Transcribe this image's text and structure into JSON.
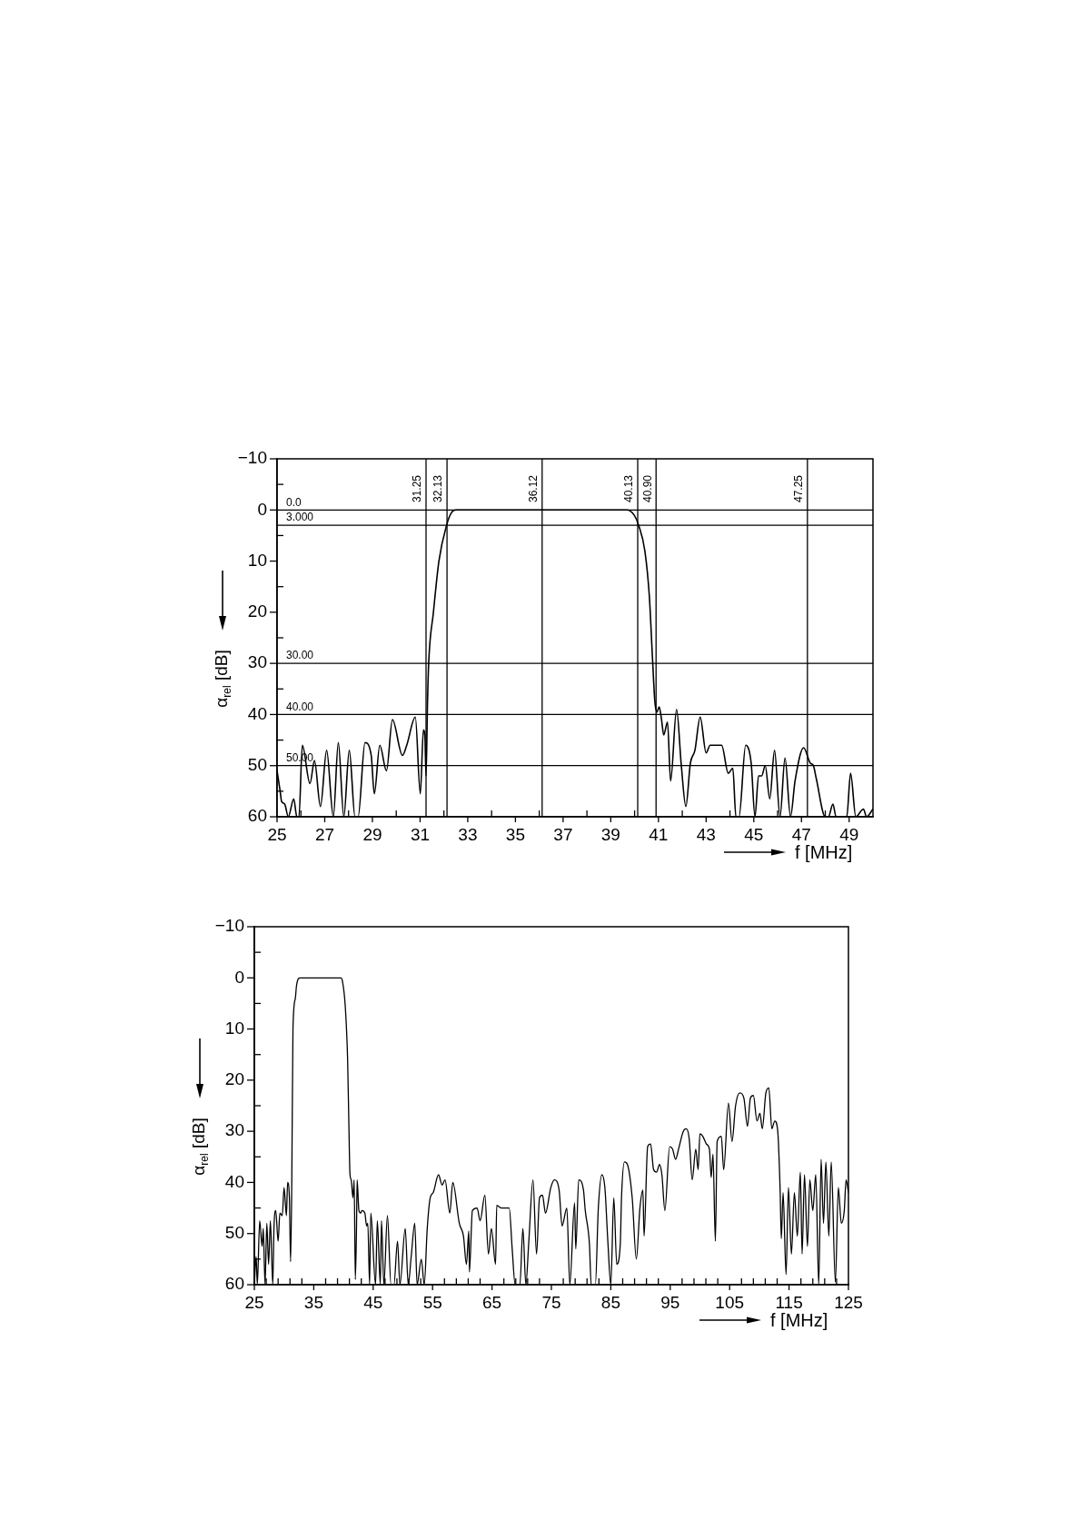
{
  "chart_data": [
    {
      "type": "line",
      "xlabel": "f [MHz]",
      "ylabel": "α$_{rel}$ [dB]",
      "color": "#000000",
      "xlim": [
        25,
        50
      ],
      "ylim": [
        60,
        -10
      ],
      "xticks": [
        25,
        {
          "value": 26,
          "label": null
        },
        27,
        {
          "value": 28,
          "label": null
        },
        29,
        {
          "value": 30,
          "label": null
        },
        31,
        {
          "value": 32,
          "label": null
        },
        33,
        {
          "value": 34,
          "label": null
        },
        35,
        {
          "value": 36,
          "label": null
        },
        37,
        {
          "value": 38,
          "label": null
        },
        39,
        {
          "value": 40,
          "label": null
        },
        41,
        {
          "value": 42,
          "label": null
        },
        43,
        {
          "value": 44,
          "label": null
        },
        45,
        {
          "value": 46,
          "label": null
        },
        47,
        {
          "value": 48,
          "label": null
        },
        49
      ],
      "yticks": [
        {
          "value": -10,
          "label": "−10"
        },
        {
          "value": -5,
          "label": null
        },
        0,
        {
          "value": 5,
          "label": null
        },
        10,
        {
          "value": 15,
          "label": null
        },
        20,
        {
          "value": 25,
          "label": null
        },
        30,
        {
          "value": 35,
          "label": null
        },
        40,
        {
          "value": 45,
          "label": null
        },
        50,
        {
          "value": 55,
          "label": null
        },
        60
      ],
      "ref_lines": [
        {
          "axis": "x",
          "value": 31.25,
          "label": "31.25",
          "color": "#000000"
        },
        {
          "axis": "x",
          "value": 32.13,
          "label": "32.13",
          "color": "#000000"
        },
        {
          "axis": "x",
          "value": 36.12,
          "label": "36.12",
          "color": "#000000"
        },
        {
          "axis": "x",
          "value": 40.13,
          "label": "40.13",
          "color": "#000000"
        },
        {
          "axis": "x",
          "value": 40.9,
          "label": "40.90",
          "color": "#000000"
        },
        {
          "axis": "x",
          "value": 47.25,
          "label": "47.25",
          "color": "#000000"
        },
        {
          "axis": "y",
          "value": 0,
          "label": "0.0",
          "color": "#000000"
        },
        {
          "axis": "y",
          "value": 3,
          "label": "3.000",
          "color": "#000000"
        },
        {
          "axis": "y",
          "value": 30,
          "label": "30.00",
          "color": "#000000"
        },
        {
          "axis": "y",
          "value": 40,
          "label": "40.00",
          "color": "#000000"
        },
        {
          "axis": "y",
          "value": 50,
          "label": "50.00",
          "color": "#000000"
        }
      ],
      "x": [
        25,
        25.13,
        25.19,
        25.32,
        25.47,
        25.7,
        25.83,
        25.92,
        26.06,
        26.38,
        26.57,
        26.82,
        27.08,
        27.36,
        27.57,
        27.8,
        28.03,
        28.27,
        28.4,
        28.69,
        28.95,
        29.08,
        29.31,
        29.59,
        29.84,
        30.26,
        30.44,
        30.8,
        31.01,
        31.14,
        31.2,
        31.25,
        31.31,
        31.36,
        31.56,
        31.79,
        32.11,
        32.32,
        32.52,
        35,
        37,
        39.66,
        39.98,
        40.17,
        40.43,
        40.62,
        40.75,
        40.85,
        40.94,
        41.03,
        41.13,
        41.22,
        41.38,
        41.51,
        41.76,
        41.96,
        42.15,
        42.34,
        42.53,
        42.75,
        43,
        43.17,
        43.42,
        43.65,
        43.93,
        44.12,
        44.25,
        44.38,
        44.66,
        44.89,
        45.05,
        45.2,
        45.33,
        45.48,
        45.67,
        45.87,
        46.1,
        46.31,
        46.54,
        46.73,
        47.09,
        47.37,
        47.5,
        47.62,
        48,
        48.13,
        48.32,
        48.45,
        48.9,
        49.06,
        49.28,
        49.6,
        49.73,
        50
      ],
      "values": [
        51,
        55,
        57,
        57.5,
        60,
        56.5,
        60,
        60,
        46,
        53.5,
        49,
        58,
        47,
        60,
        45.5,
        60,
        47,
        60,
        60,
        45.5,
        48,
        55.5,
        46,
        51,
        41,
        48,
        46,
        40.5,
        55.5,
        43,
        44,
        52,
        38,
        30,
        20,
        10,
        3,
        0.5,
        0,
        0,
        0,
        0,
        1,
        3,
        8,
        17,
        29,
        37.5,
        39.5,
        38.5,
        41,
        44,
        41.5,
        53,
        39,
        50,
        58,
        49.5,
        47,
        40.5,
        47.5,
        46,
        46,
        46,
        51.5,
        50.5,
        60,
        60,
        46,
        49.5,
        60,
        52,
        52,
        50,
        56.5,
        47,
        60,
        48.5,
        60,
        53,
        46.5,
        49.5,
        50,
        52.5,
        60,
        60,
        57.5,
        60,
        60,
        51.5,
        60,
        58.5,
        60,
        58.5
      ]
    },
    {
      "type": "line",
      "xlabel": "f [MHz]",
      "ylabel": "α$_{rel}$ [dB]",
      "color": "#000000",
      "xlim": [
        25,
        125
      ],
      "ylim": [
        60,
        -10
      ],
      "xticks": [
        25,
        {
          "value": 27,
          "label": null
        },
        {
          "value": 29,
          "label": null
        },
        {
          "value": 31,
          "label": null
        },
        {
          "value": 33,
          "label": null
        },
        35,
        {
          "value": 37,
          "label": null
        },
        {
          "value": 39,
          "label": null
        },
        {
          "value": 41,
          "label": null
        },
        {
          "value": 43,
          "label": null
        },
        45,
        {
          "value": 47,
          "label": null
        },
        {
          "value": 49,
          "label": null
        },
        {
          "value": 51,
          "label": null
        },
        {
          "value": 53,
          "label": null
        },
        55,
        {
          "value": 57,
          "label": null
        },
        {
          "value": 59,
          "label": null
        },
        {
          "value": 61,
          "label": null
        },
        {
          "value": 63,
          "label": null
        },
        65,
        {
          "value": 67,
          "label": null
        },
        {
          "value": 69,
          "label": null
        },
        {
          "value": 71,
          "label": null
        },
        {
          "value": 73,
          "label": null
        },
        75,
        {
          "value": 77,
          "label": null
        },
        {
          "value": 79,
          "label": null
        },
        {
          "value": 81,
          "label": null
        },
        {
          "value": 83,
          "label": null
        },
        85,
        {
          "value": 87,
          "label": null
        },
        {
          "value": 89,
          "label": null
        },
        {
          "value": 91,
          "label": null
        },
        {
          "value": 93,
          "label": null
        },
        95,
        {
          "value": 97,
          "label": null
        },
        {
          "value": 99,
          "label": null
        },
        {
          "value": 101,
          "label": null
        },
        {
          "value": 103,
          "label": null
        },
        105,
        {
          "value": 107,
          "label": null
        },
        {
          "value": 109,
          "label": null
        },
        {
          "value": 111,
          "label": null
        },
        {
          "value": 113,
          "label": null
        },
        115,
        {
          "value": 117,
          "label": null
        },
        {
          "value": 119,
          "label": null
        },
        {
          "value": 121,
          "label": null
        },
        {
          "value": 123,
          "label": null
        },
        125
      ],
      "yticks": [
        {
          "value": -10,
          "label": "−10"
        },
        {
          "value": -5,
          "label": null
        },
        0,
        {
          "value": 5,
          "label": null
        },
        10,
        {
          "value": 15,
          "label": null
        },
        20,
        {
          "value": 25,
          "label": null
        },
        30,
        {
          "value": 35,
          "label": null
        },
        40,
        {
          "value": 45,
          "label": null
        },
        50,
        {
          "value": 55,
          "label": null
        },
        60
      ],
      "x": [
        25,
        25.3,
        25.5,
        25.9,
        26.3,
        26.5,
        26.8,
        27.1,
        27.4,
        27.7,
        28.1,
        28.3,
        28.6,
        29,
        29.3,
        29.7,
        30,
        30.4,
        30.6,
        30.9,
        31.1,
        31.3,
        31.5,
        31.9,
        32.1,
        32.7,
        36,
        39.6,
        39.8,
        40.3,
        40.7,
        40.9,
        41.1,
        41.3,
        41.6,
        41.8,
        42,
        42.2,
        42.3,
        42.6,
        42.9,
        43.1,
        43.6,
        43.9,
        44.1,
        44.4,
        44.6,
        45.4,
        45.7,
        46.2,
        46.4,
        46.8,
        47.4,
        48,
        48.5,
        49.1,
        49.5,
        50.4,
        50.9,
        51.4,
        52,
        52.4,
        53.1,
        53.6,
        54.1,
        54.6,
        55.1,
        56,
        56.6,
        57.1,
        57.9,
        58.4,
        59.5,
        60.2,
        60.7,
        61.1,
        61.2,
        61.7,
        62.5,
        63,
        63.8,
        64.4,
        64.9,
        65.6,
        65.8,
        66.6,
        67.9,
        68.4,
        68.9,
        69.7,
        70.2,
        70.7,
        71.2,
        71.9,
        72.5,
        73,
        73.5,
        74,
        74.9,
        75.5,
        76.3,
        76.8,
        77.6,
        78.1,
        78.9,
        79.1,
        79.6,
        80.4,
        80.7,
        81.4,
        81.7,
        82.4,
        82.9,
        83.5,
        84,
        84.5,
        85,
        85.5,
        86,
        86.6,
        86.8,
        87.3,
        87.8,
        88.6,
        89.3,
        89.9,
        90.4,
        90.6,
        91.2,
        91.7,
        92.2,
        92.7,
        93.2,
        93.6,
        94.1,
        94.9,
        95.4,
        95.9,
        96.4,
        97.2,
        97.7,
        98.2,
        98.7,
        99.3,
        99.7,
        100,
        100.5,
        101.1,
        101.6,
        101.9,
        102.2,
        102.6,
        102.9,
        103.6,
        104,
        104.8,
        105.4,
        106,
        106.7,
        107.4,
        108,
        108.5,
        109,
        109.6,
        110.1,
        110.5,
        111.1,
        111.6,
        112.1,
        112.6,
        113.1,
        113.5,
        113.7,
        114,
        114.5,
        114.9,
        115.4,
        115.9,
        116.4,
        116.9,
        117.2,
        117.6,
        118.1,
        118.5,
        119,
        119.5,
        120,
        120.4,
        120.8,
        121.2,
        121.7,
        122.1,
        122.8,
        123.3,
        123.8,
        124.3,
        124.6,
        125
      ],
      "values": [
        60,
        54.5,
        60,
        47.5,
        52.5,
        49,
        60,
        48,
        56,
        47.5,
        60,
        49,
        45.5,
        51.5,
        46,
        46.5,
        41,
        46.5,
        40,
        43,
        55.5,
        40,
        10,
        4,
        1.5,
        0,
        0,
        0,
        0.5,
        5.5,
        16,
        28,
        38.5,
        39.5,
        43,
        39.5,
        59,
        48.5,
        39.5,
        45.5,
        46,
        45.5,
        46,
        48.5,
        48,
        60,
        46,
        60,
        47.5,
        60,
        47.5,
        60,
        46.5,
        60,
        60,
        51.5,
        60,
        49,
        60,
        54.5,
        48,
        60,
        55,
        60,
        49,
        43,
        42,
        38.5,
        40.5,
        39.5,
        46,
        40,
        48,
        50.5,
        56,
        49.5,
        57.5,
        45.5,
        45,
        47.5,
        42.5,
        54,
        49,
        56,
        44.5,
        45,
        45,
        53,
        60,
        60,
        49,
        60,
        51.5,
        39.5,
        54,
        43,
        42.5,
        46,
        41,
        39.5,
        41.5,
        48.5,
        45,
        60,
        44,
        53,
        39.5,
        41.5,
        45.5,
        52,
        60,
        60,
        45,
        38.5,
        41,
        51.5,
        60,
        43,
        56,
        52,
        43,
        36,
        36.5,
        43,
        55,
        45,
        41.5,
        50.5,
        33,
        32.5,
        37.5,
        38,
        36.5,
        38.5,
        45.5,
        33,
        33.5,
        35.5,
        33.5,
        30,
        29.5,
        31.5,
        39.5,
        33.5,
        37.5,
        30.5,
        31,
        32.5,
        33.5,
        39,
        34.5,
        51.5,
        32,
        31,
        37.5,
        24.5,
        32,
        25,
        22.5,
        23.5,
        29,
        23.5,
        23,
        28,
        26.5,
        29.5,
        22.5,
        21.5,
        29.5,
        28,
        30,
        41.5,
        51,
        42,
        58,
        41,
        54,
        42,
        50.5,
        38,
        54,
        38.5,
        52.5,
        39.5,
        45.5,
        38.5,
        60,
        35.5,
        48,
        36,
        50.5,
        36,
        59.5,
        41,
        48,
        45.5,
        39.5,
        42
      ]
    }
  ]
}
